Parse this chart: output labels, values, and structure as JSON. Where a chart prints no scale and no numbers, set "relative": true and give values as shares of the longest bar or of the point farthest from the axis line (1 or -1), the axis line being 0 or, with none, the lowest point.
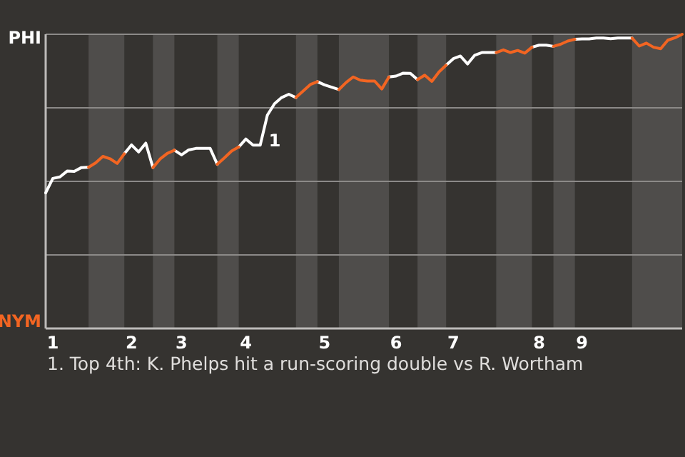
{
  "chart_data": {
    "type": "line",
    "relative": true,
    "categories": [
      null,
      "1",
      null,
      null,
      null,
      null,
      null,
      null,
      null,
      null,
      null,
      null,
      "2",
      null,
      null,
      null,
      null,
      null,
      null,
      "3",
      null,
      null,
      null,
      null,
      null,
      null,
      null,
      null,
      "4",
      null,
      null,
      null,
      null,
      null,
      null,
      null,
      null,
      null,
      null,
      "5",
      null,
      null,
      null,
      null,
      null,
      null,
      null,
      null,
      null,
      "6",
      null,
      null,
      null,
      null,
      null,
      null,
      null,
      "7",
      null,
      null,
      null,
      null,
      null,
      null,
      null,
      null,
      null,
      null,
      null,
      "8",
      null,
      null,
      null,
      null,
      null,
      "9",
      null,
      null,
      null,
      null,
      null,
      null,
      null,
      null,
      null,
      null,
      null,
      null,
      null,
      null
    ],
    "series": [
      {
        "color": "#ffffff",
        "values": [
          0.461,
          0.51,
          0.515,
          0.535,
          0.534,
          0.547,
          0.548,
          null,
          null,
          null,
          null,
          0.594,
          0.624,
          0.6,
          0.63,
          0.547,
          null,
          null,
          0.606,
          0.59,
          0.607,
          0.612,
          0.612,
          0.612,
          0.558,
          null,
          null,
          0.617,
          0.644,
          0.623,
          0.623,
          0.725,
          0.764,
          0.785,
          0.796,
          0.785,
          null,
          null,
          0.839,
          0.828,
          0.82,
          0.812,
          null,
          null,
          null,
          null,
          null,
          null,
          0.855,
          0.858,
          0.868,
          0.867,
          0.846,
          null,
          null,
          null,
          0.895,
          0.917,
          0.926,
          0.899,
          0.929,
          0.938,
          0.938,
          0.938,
          null,
          null,
          null,
          null,
          0.956,
          0.963,
          0.963,
          0.959,
          null,
          null,
          0.983,
          0.984,
          0.984,
          0.987,
          0.987,
          0.985,
          0.987,
          0.987,
          0.987,
          null,
          null,
          null,
          null,
          null,
          null,
          null
        ]
      },
      {
        "color": "#f26522",
        "values": [
          null,
          null,
          null,
          null,
          null,
          null,
          0.548,
          0.563,
          0.585,
          0.577,
          0.561,
          0.594,
          null,
          null,
          null,
          0.547,
          0.576,
          0.595,
          0.606,
          null,
          null,
          null,
          null,
          null,
          0.558,
          0.58,
          0.603,
          0.617,
          null,
          null,
          null,
          null,
          null,
          null,
          null,
          0.785,
          0.807,
          0.829,
          0.839,
          null,
          null,
          0.812,
          0.836,
          0.855,
          0.844,
          0.841,
          0.841,
          0.814,
          0.855,
          null,
          null,
          null,
          0.846,
          0.861,
          0.84,
          0.872,
          0.895,
          null,
          null,
          null,
          null,
          null,
          null,
          0.938,
          0.947,
          0.938,
          0.945,
          0.936,
          0.956,
          null,
          null,
          0.959,
          0.966,
          0.977,
          0.983,
          null,
          null,
          null,
          null,
          null,
          null,
          null,
          0.987,
          0.96,
          0.97,
          0.956,
          0.951,
          0.98,
          0.988,
          1
        ]
      }
    ],
    "marker": "none",
    "line_style": "solid",
    "ref_lines": [
      {
        "axis": "y",
        "value": 1
      },
      {
        "axis": "y",
        "value": 0.75
      },
      {
        "axis": "y",
        "value": 0.5
      },
      {
        "axis": "y",
        "value": 0.25
      }
    ],
    "annotations": [
      "PHI",
      "NYM",
      "1",
      "1. Top 4th: K. Phelps hit a run-scoring double vs R. Wortham"
    ]
  }
}
